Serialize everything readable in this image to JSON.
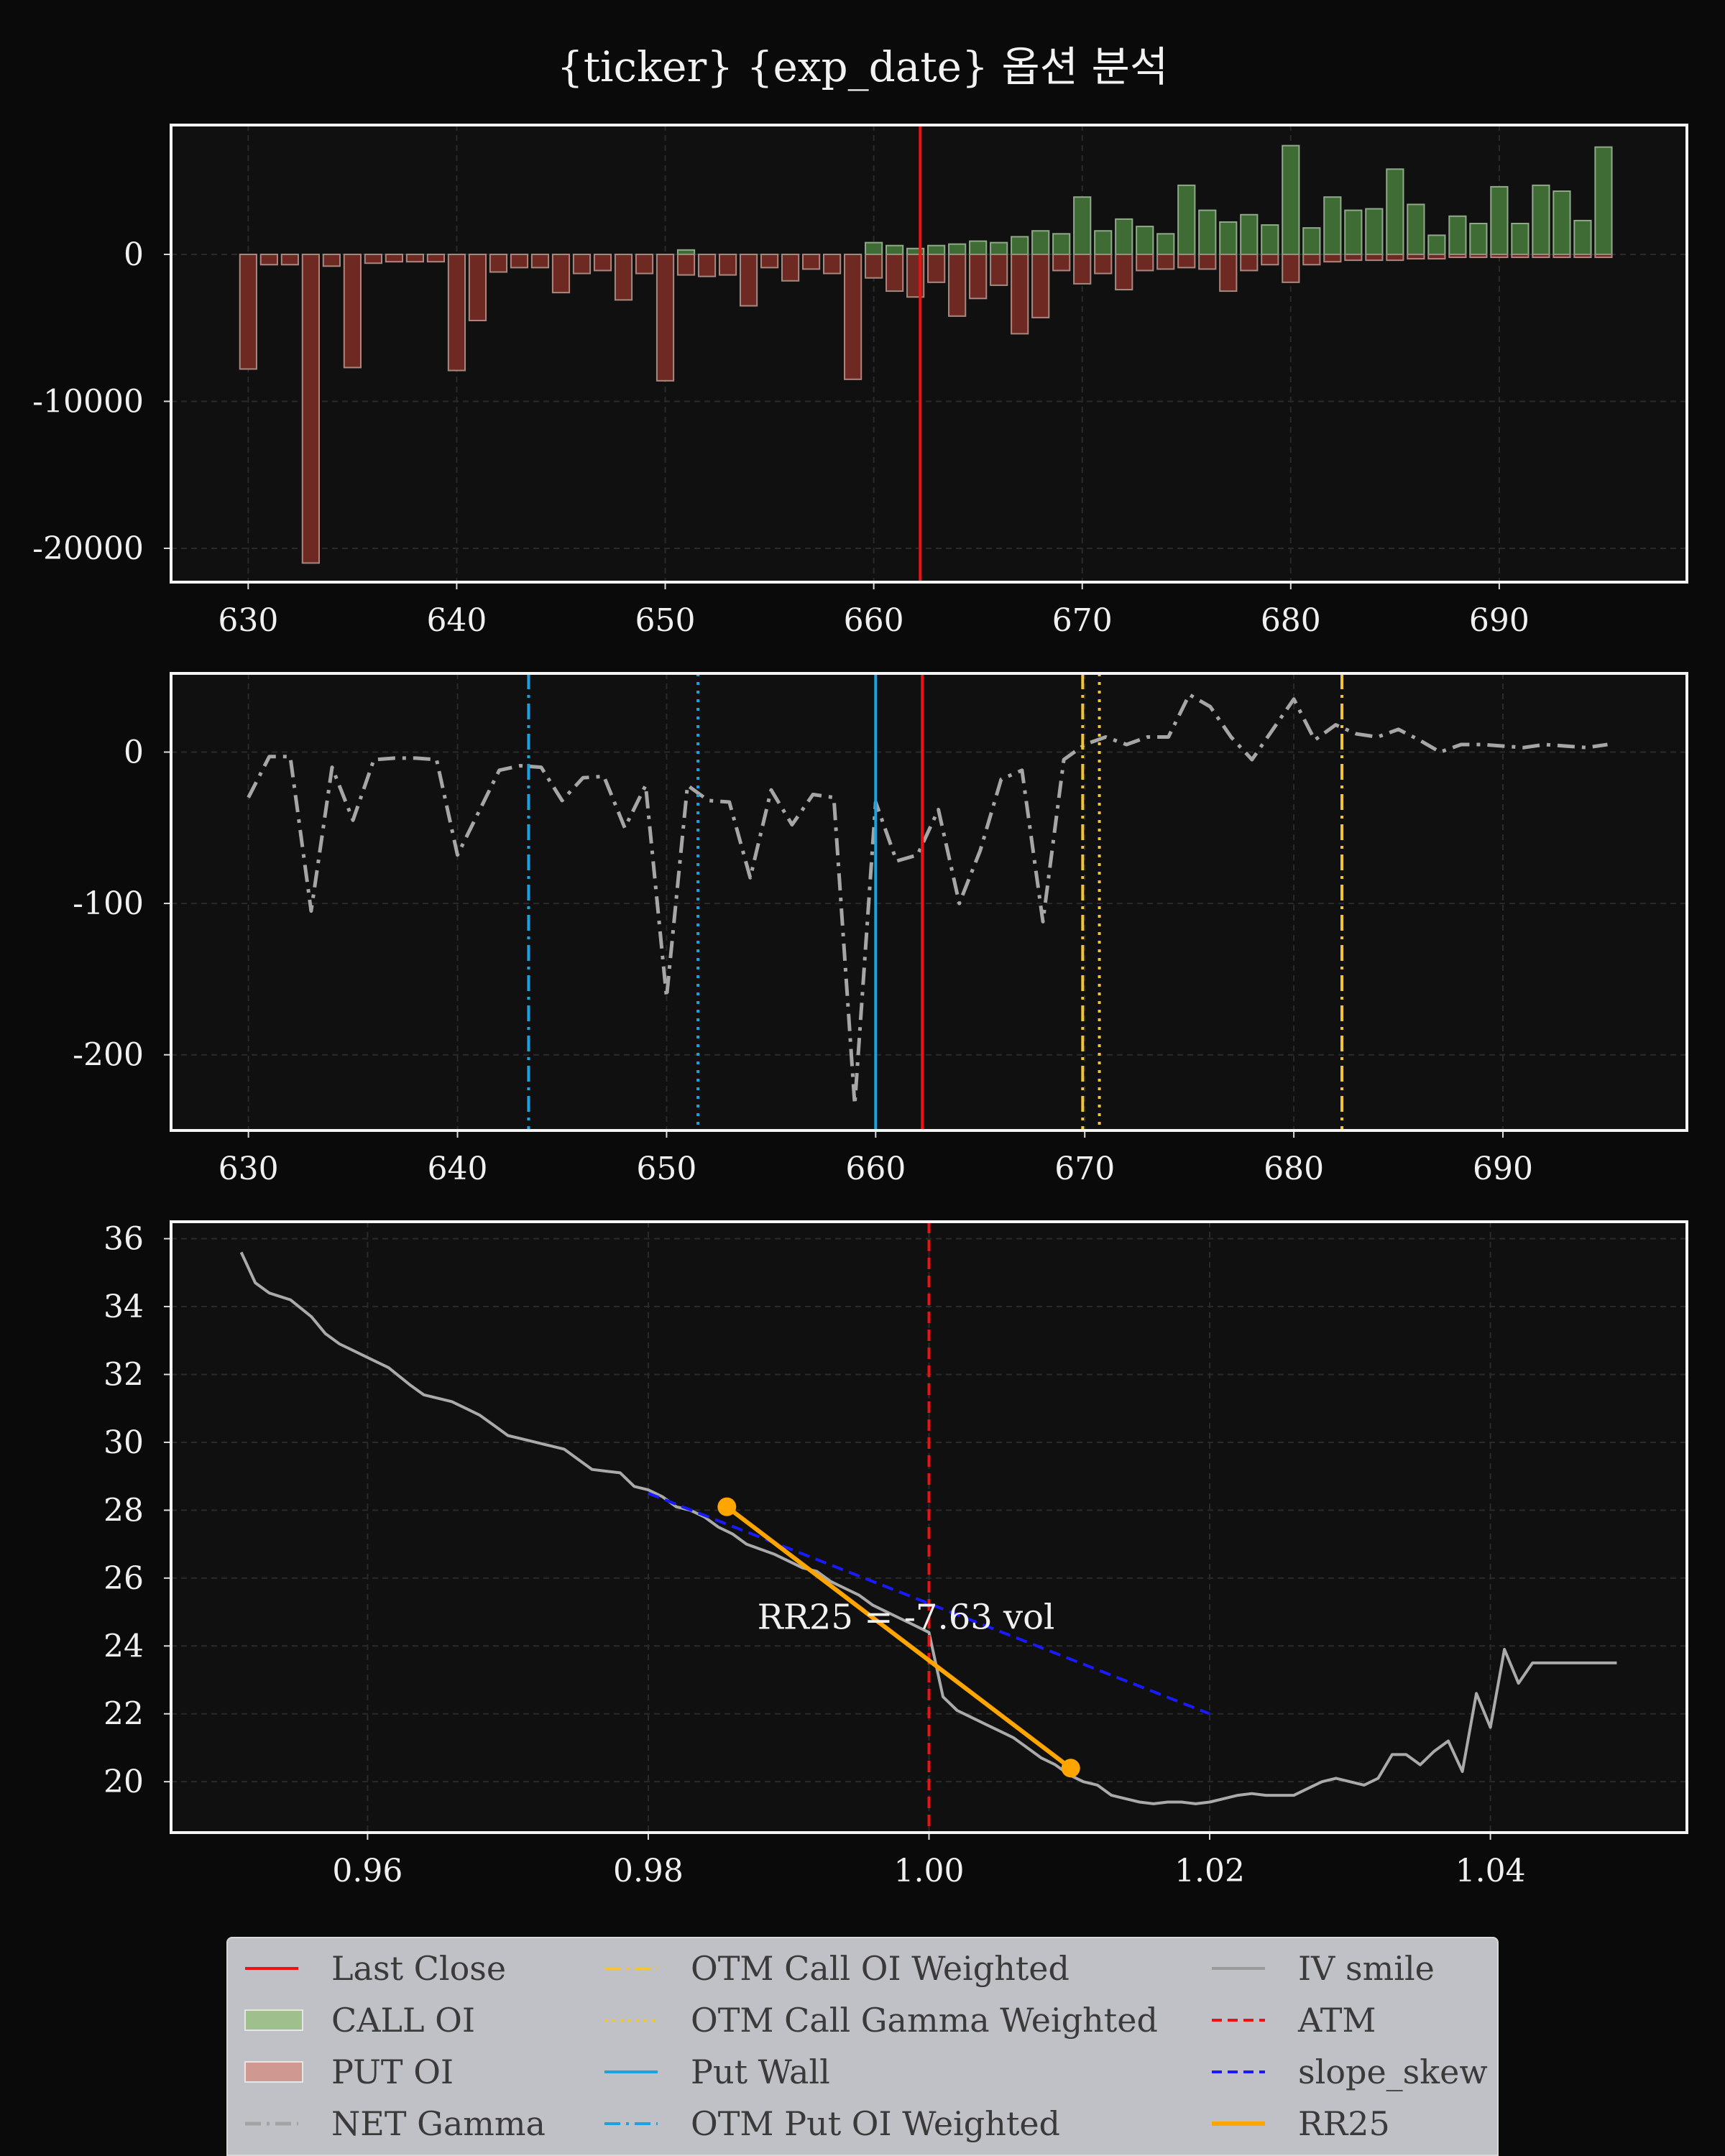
{
  "title": "{ticker} {exp_date} 옵션 분석",
  "colors": {
    "background": "#0a0a0a",
    "axes_face": "#101010",
    "call": "#3f6b34",
    "put": "#6e2a22",
    "last_close": "#ee1111",
    "gamma": "#a6a6a6",
    "put_wall": "#1aa3e0",
    "call_lines": "#f2c438",
    "iv": "#aaaaaa",
    "atm": "#ee1111",
    "slope": "#1a1aff",
    "rr25": "#ffa500"
  },
  "legend": [
    {
      "label": "Last Close",
      "style": "red-line"
    },
    {
      "label": "CALL OI",
      "style": "green-patch"
    },
    {
      "label": "PUT OI",
      "style": "red-patch"
    },
    {
      "label": "NET Gamma",
      "style": "gray-dashdot"
    },
    {
      "label": "OTM Call OI Weighted",
      "style": "yellow-dashdot"
    },
    {
      "label": "OTM Call Gamma Weighted",
      "style": "yellow-dotted"
    },
    {
      "label": "Put Wall",
      "style": "blue-line"
    },
    {
      "label": "OTM Put OI Weighted",
      "style": "blue-dashdot"
    },
    {
      "label": "IV smile",
      "style": "gray-line"
    },
    {
      "label": "ATM",
      "style": "red-dashed"
    },
    {
      "label": "slope_skew",
      "style": "blue-dashed"
    },
    {
      "label": "RR25",
      "style": "orange-line"
    }
  ],
  "chart_data": [
    {
      "type": "bar",
      "panel": "open-interest",
      "xlim": [
        626.3,
        699
      ],
      "ylim": [
        -22300,
        8800
      ],
      "xticks": [
        630,
        640,
        650,
        660,
        670,
        680,
        690
      ],
      "yticks": [
        0,
        -10000,
        -20000
      ],
      "ytick_labels": [
        "0",
        "-10000",
        "-20000"
      ],
      "strikes": [
        630,
        631,
        632,
        633,
        634,
        635,
        636,
        637,
        638,
        639,
        640,
        641,
        642,
        643,
        644,
        645,
        646,
        647,
        648,
        649,
        650,
        651,
        652,
        653,
        654,
        655,
        656,
        657,
        658,
        659,
        660,
        661,
        662,
        663,
        664,
        665,
        666,
        667,
        668,
        669,
        670,
        671,
        672,
        673,
        674,
        675,
        676,
        677,
        678,
        679,
        680,
        681,
        682,
        683,
        684,
        685,
        686,
        687,
        688,
        689,
        690,
        691,
        692,
        693,
        694,
        695
      ],
      "series": [
        {
          "name": "CALL OI",
          "values": [
            0,
            0,
            0,
            0,
            0,
            0,
            0,
            0,
            0,
            0,
            0,
            0,
            0,
            0,
            0,
            0,
            0,
            0,
            0,
            0,
            0,
            300,
            0,
            0,
            0,
            0,
            0,
            0,
            0,
            0,
            800,
            600,
            400,
            600,
            700,
            900,
            800,
            1200,
            1600,
            1400,
            3900,
            1600,
            2400,
            1900,
            1400,
            4700,
            3000,
            2200,
            2700,
            2000,
            7400,
            1800,
            3900,
            3000,
            3100,
            5800,
            3400,
            1300,
            2600,
            2100,
            4600,
            2100,
            4700,
            4300,
            2300,
            7300
          ]
        },
        {
          "name": "PUT OI",
          "values": [
            -7800,
            -700,
            -700,
            -21000,
            -800,
            -7700,
            -600,
            -500,
            -500,
            -500,
            -7900,
            -4500,
            -1200,
            -900,
            -900,
            -2600,
            -1300,
            -1100,
            -3100,
            -1300,
            -8600,
            -1400,
            -1500,
            -1400,
            -3500,
            -900,
            -1800,
            -1000,
            -1300,
            -8500,
            -1600,
            -2500,
            -2900,
            -1900,
            -4200,
            -3000,
            -2100,
            -5400,
            -4300,
            -1100,
            -2000,
            -1300,
            -2400,
            -1100,
            -1000,
            -900,
            -1000,
            -2500,
            -1100,
            -700,
            -1900,
            -700,
            -500,
            -400,
            -400,
            -400,
            -300,
            -300,
            -200,
            -200,
            -200,
            -200,
            -200,
            -200,
            -200,
            -200
          ]
        }
      ],
      "vlines": [
        {
          "name": "Last Close",
          "x": 662.23
        }
      ]
    },
    {
      "type": "line",
      "panel": "net-gamma",
      "xlim": [
        626.3,
        698.8
      ],
      "ylim": [
        -250,
        52
      ],
      "xticks": [
        630,
        640,
        650,
        660,
        670,
        680,
        690
      ],
      "yticks": [
        0,
        -100,
        -200
      ],
      "ytick_labels": [
        "0",
        "-100",
        "-200"
      ],
      "x": [
        630,
        631,
        632,
        633,
        634,
        635,
        636,
        637,
        638,
        639,
        640,
        641,
        642,
        643,
        644,
        645,
        646,
        647,
        648,
        649,
        650,
        651,
        652,
        653,
        654,
        655,
        656,
        657,
        658,
        659,
        660,
        661,
        662,
        663,
        664,
        665,
        666,
        667,
        668,
        669,
        670,
        671,
        672,
        673,
        674,
        675,
        676,
        677,
        678,
        679,
        680,
        681,
        682,
        683,
        684,
        685,
        686,
        687,
        688,
        689,
        690,
        691,
        692,
        693,
        694,
        695
      ],
      "series": [
        {
          "name": "NET Gamma",
          "values": [
            -30,
            -3,
            -3,
            -105,
            -10,
            -45,
            -5,
            -4,
            -4,
            -5,
            -68,
            -40,
            -12,
            -9,
            -10,
            -32,
            -17,
            -16,
            -50,
            -22,
            -162,
            -22,
            -32,
            -33,
            -83,
            -25,
            -48,
            -28,
            -30,
            -233,
            -33,
            -72,
            -68,
            -38,
            -100,
            -65,
            -18,
            -12,
            -112,
            -5,
            5,
            10,
            5,
            10,
            10,
            38,
            30,
            10,
            -5,
            15,
            35,
            8,
            18,
            12,
            10,
            15,
            8,
            0,
            5,
            5,
            4,
            3,
            5,
            4,
            3,
            5
          ]
        }
      ],
      "vlines": [
        {
          "name": "OTM Put OI Weighted",
          "x": 643.4
        },
        {
          "name": "Put Wall",
          "x": 651.5,
          "note": "dotted"
        },
        {
          "name": "Put Wall",
          "x": 660.0
        },
        {
          "name": "Last Close",
          "x": 662.23
        },
        {
          "name": "OTM Call OI Weighted",
          "x": 669.9
        },
        {
          "name": "OTM Call Gamma Weighted",
          "x": 670.7
        },
        {
          "name": "OTM Call OI Weighted",
          "x": 682.3
        }
      ]
    },
    {
      "type": "line",
      "panel": "iv-smile",
      "xlim": [
        0.946,
        1.054
      ],
      "ylim": [
        18.5,
        36.5
      ],
      "xticks": [
        0.96,
        0.98,
        1.0,
        1.02,
        1.04
      ],
      "xtick_labels": [
        "0.96",
        "0.98",
        "1.00",
        "1.02",
        "1.04"
      ],
      "yticks": [
        20,
        22,
        24,
        26,
        28,
        30,
        32,
        34,
        36
      ],
      "series": [
        {
          "name": "IV smile",
          "x": [
            0.951,
            0.952,
            0.953,
            0.9545,
            0.956,
            0.957,
            0.958,
            0.959,
            0.96,
            0.9615,
            0.963,
            0.964,
            0.965,
            0.966,
            0.967,
            0.968,
            0.969,
            0.97,
            0.971,
            0.972,
            0.973,
            0.974,
            0.975,
            0.976,
            0.977,
            0.978,
            0.979,
            0.98,
            0.981,
            0.982,
            0.983,
            0.984,
            0.985,
            0.986,
            0.987,
            0.988,
            0.989,
            0.99,
            0.991,
            0.992,
            0.993,
            0.994,
            0.995,
            0.996,
            0.997,
            0.998,
            0.999,
            1.0,
            1.001,
            1.002,
            1.003,
            1.004,
            1.005,
            1.006,
            1.007,
            1.008,
            1.009,
            1.01,
            1.011,
            1.012,
            1.013,
            1.014,
            1.015,
            1.016,
            1.017,
            1.018,
            1.019,
            1.02,
            1.021,
            1.022,
            1.023,
            1.024,
            1.025,
            1.026,
            1.027,
            1.028,
            1.029,
            1.03,
            1.031,
            1.032,
            1.033,
            1.034,
            1.035,
            1.036,
            1.037,
            1.038,
            1.039,
            1.04,
            1.041,
            1.042,
            1.043,
            1.044,
            1.045,
            1.046,
            1.047,
            1.048,
            1.049
          ],
          "values": [
            35.6,
            34.7,
            34.4,
            34.2,
            33.7,
            33.2,
            32.9,
            32.7,
            32.5,
            32.2,
            31.7,
            31.4,
            31.3,
            31.2,
            31.0,
            30.8,
            30.5,
            30.2,
            30.1,
            30.0,
            29.9,
            29.8,
            29.5,
            29.2,
            29.15,
            29.1,
            28.7,
            28.6,
            28.4,
            28.1,
            28.0,
            27.8,
            27.5,
            27.3,
            27.0,
            26.85,
            26.7,
            26.5,
            26.3,
            26.2,
            25.9,
            25.7,
            25.5,
            25.2,
            25.0,
            24.8,
            24.6,
            24.4,
            22.5,
            22.1,
            21.9,
            21.7,
            21.5,
            21.3,
            21.0,
            20.7,
            20.5,
            20.2,
            20.0,
            19.9,
            19.6,
            19.5,
            19.4,
            19.35,
            19.4,
            19.4,
            19.35,
            19.4,
            19.5,
            19.6,
            19.65,
            19.6,
            19.6,
            19.6,
            19.8,
            20.0,
            20.1,
            20.0,
            19.9,
            20.1,
            20.8,
            20.8,
            20.5,
            20.9,
            21.2,
            20.3,
            22.6,
            21.6,
            23.9,
            22.9,
            23.5,
            23.5,
            23.5,
            23.5,
            23.5,
            23.5,
            23.5
          ]
        },
        {
          "name": "slope_skew",
          "x": [
            0.98,
            1.02
          ],
          "values": [
            28.5,
            22.0
          ]
        },
        {
          "name": "RR25",
          "x": [
            0.9856,
            1.0101
          ],
          "values": [
            28.1,
            20.4
          ]
        }
      ],
      "vlines": [
        {
          "name": "ATM",
          "x": 1.0
        }
      ],
      "annotation": "RR25 = -7.63 vol"
    }
  ]
}
